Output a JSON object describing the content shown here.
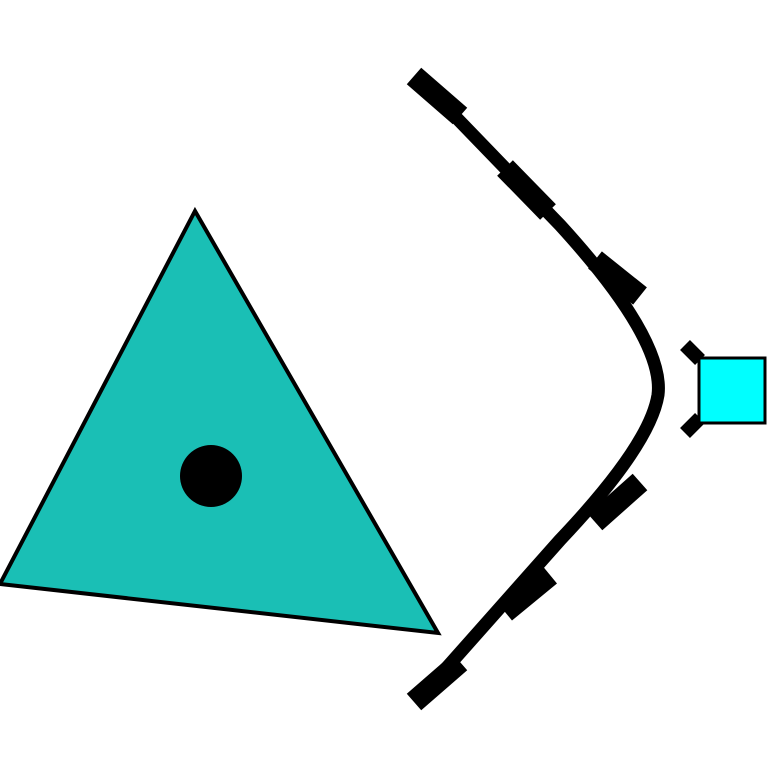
{
  "diagram": {
    "shapes": [
      {
        "name": "teal-triangle",
        "kind": "triangle"
      },
      {
        "name": "center-dot",
        "kind": "dot"
      },
      {
        "name": "curved-barrier",
        "kind": "curved-line"
      },
      {
        "name": "cyan-square",
        "kind": "square"
      }
    ]
  },
  "colors": {
    "triangle_fill": "#1abfb5",
    "outline": "#000000",
    "square_fill": "#00ffff",
    "background": "#ffffff"
  }
}
